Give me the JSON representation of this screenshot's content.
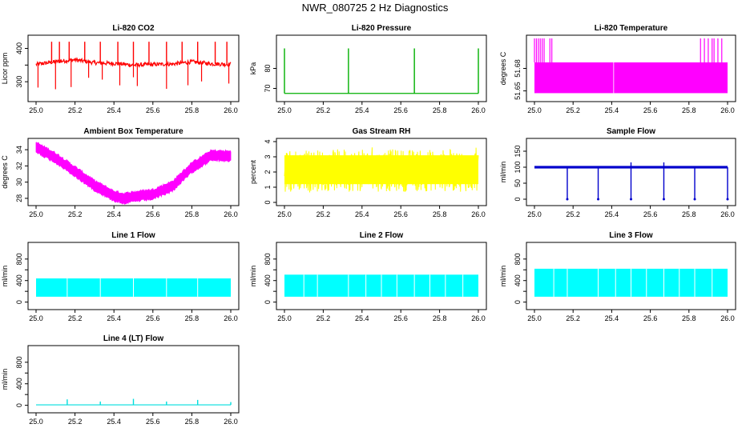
{
  "title": "NWR_080725  2 Hz Diagnostics",
  "chart_data": [
    {
      "type": "line",
      "title": "Li-820 CO2",
      "ylabel": "Licor ppm",
      "color": "#ff0000",
      "xlim": [
        25.0,
        26.0
      ],
      "ylim": [
        250,
        430
      ],
      "xticks": [
        "25.0",
        "25.2",
        "25.4",
        "25.6",
        "25.8",
        "26.0"
      ],
      "yticks": [
        300,
        350,
        400
      ],
      "ytick_labels": [
        "300",
        "",
        "400"
      ],
      "series": [
        {
          "x": [
            25.0,
            25.1,
            25.2,
            25.3,
            25.4,
            25.5,
            25.6,
            25.7,
            25.8,
            25.9,
            26.0
          ],
          "values": [
            352,
            360,
            366,
            357,
            355,
            350,
            352,
            353,
            360,
            354,
            352
          ]
        }
      ]
    },
    {
      "type": "line",
      "title": "Li-820 Pressure",
      "ylabel": "kPa",
      "color": "#00b000",
      "xlim": [
        25.0,
        26.0
      ],
      "ylim": [
        65,
        95
      ],
      "xticks": [
        "25.0",
        "25.2",
        "25.4",
        "25.6",
        "25.8",
        "26.0"
      ],
      "yticks": [
        70,
        80
      ],
      "ytick_labels": [
        "70",
        "80"
      ],
      "series": [
        {
          "x": [
            25.0,
            25.2,
            25.4,
            25.6,
            25.8,
            26.0
          ],
          "values": [
            67.5,
            67.5,
            67.5,
            67.6,
            67.6,
            67.5
          ]
        }
      ]
    },
    {
      "type": "area",
      "title": "Li-820 Temperature",
      "ylabel": "degrees C",
      "color": "#ff00ff",
      "xlim": [
        25.0,
        26.0
      ],
      "ylim": [
        51.64,
        51.72
      ],
      "xticks": [
        "25.0",
        "25.2",
        "25.4",
        "25.6",
        "25.8",
        "26.0"
      ],
      "yticks": [
        51.65,
        51.68
      ],
      "ytick_labels": [
        "51.65",
        "51.68"
      ],
      "series": [
        {
          "x": [
            25.0,
            26.0
          ],
          "low": 51.647,
          "high": 51.688
        }
      ]
    },
    {
      "type": "line",
      "title": "Ambient Box Temperature",
      "ylabel": "degrees C",
      "color": "#ff00ff",
      "xlim": [
        25.0,
        26.0
      ],
      "ylim": [
        27.5,
        35.0
      ],
      "xticks": [
        "25.0",
        "25.2",
        "25.4",
        "25.6",
        "25.8",
        "26.0"
      ],
      "yticks": [
        28,
        30,
        32,
        34
      ],
      "ytick_labels": [
        "28",
        "30",
        "32",
        "34"
      ],
      "series": [
        {
          "x": [
            25.0,
            25.1,
            25.2,
            25.3,
            25.4,
            25.45,
            25.5,
            25.6,
            25.7,
            25.8,
            25.9,
            26.0
          ],
          "values": [
            34.3,
            33.0,
            31.3,
            29.6,
            28.3,
            28.0,
            28.2,
            28.5,
            29.5,
            31.8,
            33.3,
            33.2
          ]
        }
      ]
    },
    {
      "type": "area",
      "title": "Gas Stream RH",
      "ylabel": "percent",
      "color": "#ffff00",
      "xlim": [
        25.0,
        26.0
      ],
      "ylim": [
        0,
        4
      ],
      "xticks": [
        "25.0",
        "25.2",
        "25.4",
        "25.6",
        "25.8",
        "26.0"
      ],
      "yticks": [
        0,
        1,
        2,
        3,
        4
      ],
      "ytick_labels": [
        "0",
        "1",
        "2",
        "3",
        "4"
      ],
      "series": [
        {
          "x": [
            25.0,
            26.0
          ],
          "low": 0.7,
          "high": 3.5
        }
      ]
    },
    {
      "type": "line",
      "title": "Sample Flow",
      "ylabel": "ml/min",
      "color": "#0000cc",
      "xlim": [
        25.0,
        26.0
      ],
      "ylim": [
        -10,
        180
      ],
      "xticks": [
        "25.0",
        "25.2",
        "25.4",
        "25.6",
        "25.8",
        "26.0"
      ],
      "yticks": [
        0,
        50,
        100,
        150
      ],
      "ytick_labels": [
        "0",
        "50",
        "100",
        "150"
      ],
      "series": [
        {
          "x": [
            25.0,
            26.0
          ],
          "values": [
            100,
            100
          ]
        }
      ]
    },
    {
      "type": "area",
      "title": "Line 1 Flow",
      "ylabel": "ml/min",
      "color": "#00ffff",
      "xlim": [
        25.0,
        26.0
      ],
      "ylim": [
        -80,
        1050
      ],
      "xticks": [
        "25.0",
        "25.2",
        "25.4",
        "25.6",
        "25.8",
        "26.0"
      ],
      "yticks": [
        0,
        200,
        400,
        600,
        800
      ],
      "ytick_labels": [
        "0",
        "",
        "400",
        "",
        "800"
      ],
      "series": [
        {
          "x": [
            25.0,
            26.0
          ],
          "low": 100,
          "high": 440
        }
      ]
    },
    {
      "type": "area",
      "title": "Line 2 Flow",
      "ylabel": "ml/min",
      "color": "#00ffff",
      "xlim": [
        25.0,
        26.0
      ],
      "ylim": [
        -80,
        1050
      ],
      "xticks": [
        "25.0",
        "25.2",
        "25.4",
        "25.6",
        "25.8",
        "26.0"
      ],
      "yticks": [
        0,
        200,
        400,
        600,
        800
      ],
      "ytick_labels": [
        "0",
        "",
        "400",
        "",
        "800"
      ],
      "series": [
        {
          "x": [
            25.0,
            26.0
          ],
          "low": 100,
          "high": 510
        }
      ]
    },
    {
      "type": "area",
      "title": "Line 3 Flow",
      "ylabel": "ml/min",
      "color": "#00ffff",
      "xlim": [
        25.0,
        26.0
      ],
      "ylim": [
        -80,
        1050
      ],
      "xticks": [
        "25.0",
        "25.2",
        "25.4",
        "25.6",
        "25.8",
        "26.0"
      ],
      "yticks": [
        0,
        200,
        400,
        600,
        800
      ],
      "ytick_labels": [
        "0",
        "",
        "400",
        "",
        "800"
      ],
      "series": [
        {
          "x": [
            25.0,
            26.0
          ],
          "low": 100,
          "high": 620
        }
      ]
    },
    {
      "type": "line",
      "title": "Line 4 (LT) Flow",
      "ylabel": "ml/min",
      "color": "#00dddd",
      "xlim": [
        25.0,
        26.0
      ],
      "ylim": [
        -80,
        1050
      ],
      "xticks": [
        "25.0",
        "25.2",
        "25.4",
        "25.6",
        "25.8",
        "26.0"
      ],
      "yticks": [
        0,
        200,
        400,
        600,
        800
      ],
      "ytick_labels": [
        "0",
        "",
        "400",
        "",
        "800"
      ],
      "series": [
        {
          "x": [
            25.0,
            26.0
          ],
          "values": [
            8,
            8
          ]
        }
      ]
    }
  ]
}
